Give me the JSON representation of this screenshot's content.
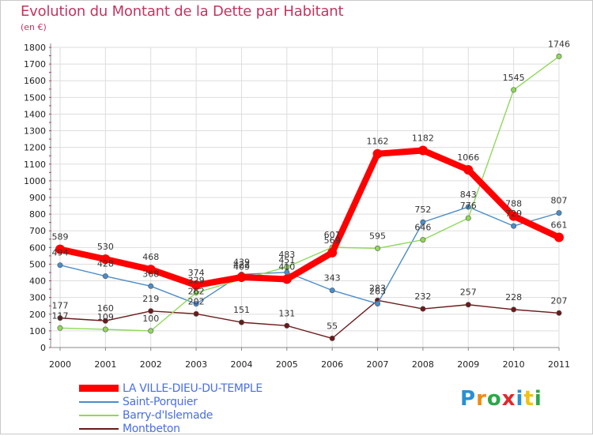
{
  "title": "Evolution du Montant de la Dette par Habitant",
  "unit": "(en €)",
  "logo": {
    "letters": [
      "P",
      "r",
      "o",
      "x",
      "i",
      "t",
      "i"
    ],
    "colors": [
      "#2a8fd4",
      "#f08a16",
      "#2ba84a",
      "#e4262b",
      "#2a8fd4",
      "#f0c21a",
      "#2ba84a"
    ]
  },
  "chart_data": {
    "type": "line",
    "title": "Evolution du Montant de la Dette par Habitant",
    "ylabel": "(en €)",
    "xlabel": "",
    "x": [
      "2000",
      "2001",
      "2002",
      "2003",
      "2004",
      "2005",
      "2006",
      "2007",
      "2008",
      "2009",
      "2010",
      "2011"
    ],
    "ylim": [
      0,
      1800
    ],
    "yticks": [
      0,
      100,
      200,
      300,
      400,
      500,
      600,
      700,
      800,
      900,
      1000,
      1100,
      1200,
      1300,
      1400,
      1500,
      1600,
      1700,
      1800
    ],
    "grid": true,
    "legend_position": "bottom-left",
    "series": [
      {
        "name": "LA VILLE-DIEU-DU-TEMPLE",
        "color": "#ff0000",
        "values": [
          589,
          530,
          468,
          374,
          422,
          410,
          569,
          1162,
          1182,
          1066,
          788,
          661
        ],
        "labels": [
          "589",
          "530",
          "468",
          "374",
          "422",
          "410",
          "569",
          "1162",
          "1182",
          "1066",
          "788",
          "661"
        ]
      },
      {
        "name": "Saint-Porquier",
        "color": "#4a8cc8",
        "values": [
          494,
          428,
          368,
          262,
          439,
          451,
          343,
          263,
          752,
          843,
          729,
          807
        ],
        "labels": [
          "494",
          "428",
          "368",
          "262",
          "439",
          "451",
          "343",
          "263",
          "752",
          "843",
          "729",
          "807"
        ]
      },
      {
        "name": "Barry-d'Islemade",
        "color": "#8fd85a",
        "values": [
          117,
          109,
          100,
          329,
          409,
          483,
          601,
          595,
          646,
          776,
          1545,
          1746
        ],
        "labels": [
          "117",
          "109",
          "100",
          "329",
          "409",
          "483",
          "601",
          "595",
          "646",
          "776",
          "1545",
          "1746"
        ]
      },
      {
        "name": "Montbeton",
        "color": "#6b1a1a",
        "values": [
          177,
          160,
          219,
          202,
          151,
          131,
          55,
          283,
          232,
          257,
          228,
          207
        ],
        "labels": [
          "177",
          "160",
          "219",
          "202",
          "151",
          "131",
          "55",
          "283",
          "232",
          "257",
          "228",
          "207"
        ]
      }
    ]
  }
}
